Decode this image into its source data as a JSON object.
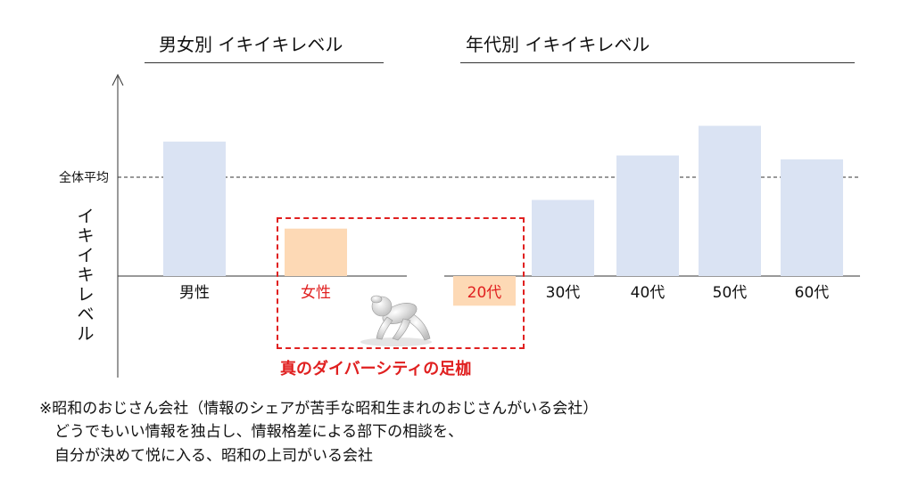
{
  "sections": {
    "gender_title": "男女別 イキイキレベル",
    "age_title": "年代別 イキイキレベル"
  },
  "chart_data": {
    "type": "bar",
    "ylabel": "イキイキレベル",
    "reference_line": {
      "label": "全体平均",
      "value": 100,
      "style": "dashed"
    },
    "ylim": [
      -30,
      230
    ],
    "grid": false,
    "groups": [
      {
        "title": "男女別 イキイキレベル",
        "categories": [
          "男性",
          "女性"
        ],
        "values": [
          136,
          48
        ],
        "colors": [
          "#dae3f3",
          "#fdd9b5"
        ],
        "label_colors": [
          "#111111",
          "#e02020"
        ]
      },
      {
        "title": "年代別 イキイキレベル",
        "categories": [
          "20代",
          "30代",
          "40代",
          "50代",
          "60代"
        ],
        "values": [
          -30,
          77,
          122,
          152,
          118
        ],
        "colors": [
          "#fdd9b5",
          "#dae3f3",
          "#dae3f3",
          "#dae3f3",
          "#dae3f3"
        ],
        "label_colors": [
          "#e02020",
          "#111111",
          "#111111",
          "#111111",
          "#111111"
        ]
      }
    ]
  },
  "callout": {
    "label": "真のダイバーシティの足枷",
    "color": "#e02020"
  },
  "figure_icon": "crouching-person-icon",
  "notes": [
    "※昭和のおじさん会社（情報のシェアが苦手な昭和生まれのおじさんがいる会社）",
    "　どうでもいい情報を独占し、情報格差による部下の相談を、",
    "　自分が決めて悦に入る、昭和の上司がいる会社"
  ]
}
